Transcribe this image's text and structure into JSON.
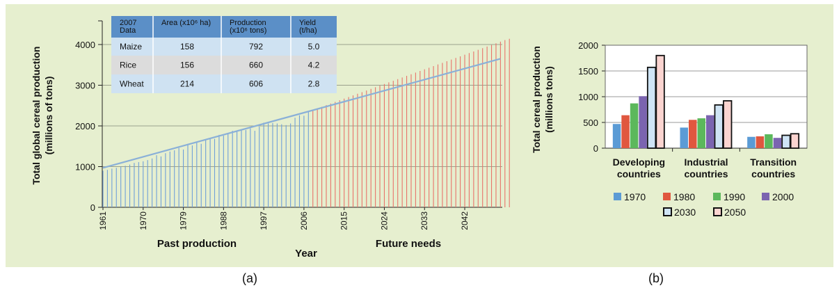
{
  "chart_data": [
    {
      "type": "bar",
      "panel_label": "(a)",
      "ylabel_line1": "Total global cereal production",
      "ylabel_line2": "(millions of tons)",
      "xlabel": "Year",
      "ylim": [
        0,
        4000
      ],
      "yticks": [
        0,
        1000,
        2000,
        3000,
        4000
      ],
      "xtick_labels": [
        "1961",
        "1970",
        "1979",
        "1988",
        "1997",
        "2006",
        "2015",
        "2024",
        "2033",
        "2042"
      ],
      "region_labels": {
        "past": "Past production",
        "future": "Future needs"
      },
      "grid": true,
      "series": [
        {
          "name": "Past production",
          "color": "#6f9fd8",
          "x_start": 1961,
          "values": [
            900,
            920,
            950,
            970,
            1000,
            1020,
            1050,
            1090,
            1110,
            1130,
            1160,
            1200,
            1280,
            1250,
            1330,
            1370,
            1400,
            1460,
            1420,
            1560,
            1520,
            1590,
            1560,
            1650,
            1700,
            1680,
            1780,
            1760,
            1810,
            1880,
            1860,
            1890,
            1900,
            1940,
            1880,
            1980,
            2080,
            2060,
            2070,
            2060,
            2040,
            2020,
            2060,
            2200,
            2260,
            2250,
            2350
          ]
        },
        {
          "name": "Future needs",
          "color": "#e8736a",
          "x_start": 2008,
          "values": [
            2390,
            2430,
            2470,
            2510,
            2550,
            2590,
            2630,
            2670,
            2710,
            2750,
            2790,
            2830,
            2870,
            2910,
            2950,
            2990,
            3030,
            3070,
            3110,
            3150,
            3190,
            3230,
            3270,
            3310,
            3350,
            3390,
            3430,
            3470,
            3510,
            3550,
            3590,
            3630,
            3670,
            3710,
            3750,
            3790,
            3830,
            3870,
            3910,
            3950,
            3990,
            4030,
            4070,
            4110,
            4140
          ]
        }
      ],
      "trend_line": {
        "color": "#8ab0d8",
        "x": [
          1961,
          2050
        ],
        "y": [
          970,
          3650
        ]
      },
      "inset_table": {
        "headers": [
          "2007\nData",
          "Area (x10⁶ ha)",
          "Production\n(x10⁶ tons)",
          "Yield\n(t/ha)"
        ],
        "rows": [
          [
            "Maize",
            "158",
            "792",
            "5.0"
          ],
          [
            "Rice",
            "156",
            "660",
            "4.2"
          ],
          [
            "Wheat",
            "214",
            "606",
            "2.8"
          ]
        ],
        "header_color": "#5b8fc7",
        "row_colors": [
          "#cfe2f2",
          "#dcdcdc",
          "#cfe2f2"
        ]
      }
    },
    {
      "type": "bar",
      "panel_label": "(b)",
      "ylabel_line1": "Total cereal production",
      "ylabel_line2": "(millions tons)",
      "ylim": [
        0,
        2000
      ],
      "yticks": [
        0,
        500,
        1000,
        1500,
        2000
      ],
      "categories": [
        [
          "Developing",
          "countries"
        ],
        [
          "Industrial",
          "countries"
        ],
        [
          "Transition",
          "countries"
        ]
      ],
      "series": [
        {
          "name": "1970",
          "color": "#5b9bd5",
          "values": [
            470,
            400,
            220
          ]
        },
        {
          "name": "1980",
          "color": "#e0573f",
          "values": [
            640,
            550,
            230
          ]
        },
        {
          "name": "1990",
          "color": "#5cb85c",
          "values": [
            870,
            580,
            270
          ]
        },
        {
          "name": "2000",
          "color": "#7b64b0",
          "values": [
            1010,
            640,
            200
          ]
        },
        {
          "name": "2030",
          "color": "#cfe4f5",
          "values": [
            1570,
            840,
            250
          ]
        },
        {
          "name": "2050",
          "color": "#fbd4d0",
          "values": [
            1800,
            920,
            280
          ]
        }
      ],
      "legend_placement": "bottom",
      "grid": true
    }
  ]
}
